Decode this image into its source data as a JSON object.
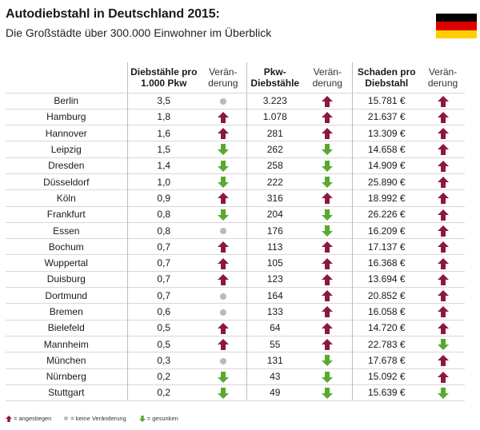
{
  "header": {
    "title": "Autodiebstahl in Deutschland 2015:",
    "subtitle": "Die Großstädte über 300.000 Einwohner im Überblick"
  },
  "flag_colors": [
    "#000000",
    "#dd0000",
    "#ffce00"
  ],
  "colors": {
    "up": "#8b1a3a",
    "down": "#5aa832",
    "none": "#b9b9b9"
  },
  "columns": {
    "thefts_per_1000": [
      "Diebstähle pro",
      "1.000 Pkw"
    ],
    "change": [
      "Verän-",
      "derung"
    ],
    "car_thefts": [
      "Pkw-",
      "Diebstähle"
    ],
    "damage_per_theft": [
      "Schaden pro",
      "Diebstahl"
    ]
  },
  "rows": [
    {
      "city": "Berlin",
      "rate": "3,5",
      "rate_trend": "none",
      "thefts": "3.223",
      "thefts_trend": "up",
      "damage": "15.781 €",
      "damage_trend": "up"
    },
    {
      "city": "Hamburg",
      "rate": "1,8",
      "rate_trend": "up",
      "thefts": "1.078",
      "thefts_trend": "up",
      "damage": "21.637 €",
      "damage_trend": "up"
    },
    {
      "city": "Hannover",
      "rate": "1,6",
      "rate_trend": "up",
      "thefts": "281",
      "thefts_trend": "up",
      "damage": "13.309 €",
      "damage_trend": "up"
    },
    {
      "city": "Leipzig",
      "rate": "1,5",
      "rate_trend": "down",
      "thefts": "262",
      "thefts_trend": "down",
      "damage": "14.658 €",
      "damage_trend": "up"
    },
    {
      "city": "Dresden",
      "rate": "1,4",
      "rate_trend": "down",
      "thefts": "258",
      "thefts_trend": "down",
      "damage": "14.909 €",
      "damage_trend": "up"
    },
    {
      "city": "Düsseldorf",
      "rate": "1,0",
      "rate_trend": "down",
      "thefts": "222",
      "thefts_trend": "down",
      "damage": "25.890 €",
      "damage_trend": "up"
    },
    {
      "city": "Köln",
      "rate": "0,9",
      "rate_trend": "up",
      "thefts": "316",
      "thefts_trend": "up",
      "damage": "18.992 €",
      "damage_trend": "up"
    },
    {
      "city": "Frankfurt",
      "rate": "0,8",
      "rate_trend": "down",
      "thefts": "204",
      "thefts_trend": "down",
      "damage": "26.226 €",
      "damage_trend": "up"
    },
    {
      "city": "Essen",
      "rate": "0,8",
      "rate_trend": "none",
      "thefts": "176",
      "thefts_trend": "down",
      "damage": "16.209 €",
      "damage_trend": "up"
    },
    {
      "city": "Bochum",
      "rate": "0,7",
      "rate_trend": "up",
      "thefts": "113",
      "thefts_trend": "up",
      "damage": "17.137 €",
      "damage_trend": "up"
    },
    {
      "city": "Wuppertal",
      "rate": "0,7",
      "rate_trend": "up",
      "thefts": "105",
      "thefts_trend": "up",
      "damage": "16.368 €",
      "damage_trend": "up"
    },
    {
      "city": "Duisburg",
      "rate": "0,7",
      "rate_trend": "up",
      "thefts": "123",
      "thefts_trend": "up",
      "damage": "13.694 €",
      "damage_trend": "up"
    },
    {
      "city": "Dortmund",
      "rate": "0,7",
      "rate_trend": "none",
      "thefts": "164",
      "thefts_trend": "up",
      "damage": "20.852 €",
      "damage_trend": "up"
    },
    {
      "city": "Bremen",
      "rate": "0,6",
      "rate_trend": "none",
      "thefts": "133",
      "thefts_trend": "up",
      "damage": "16.058 €",
      "damage_trend": "up"
    },
    {
      "city": "Bielefeld",
      "rate": "0,5",
      "rate_trend": "up",
      "thefts": "64",
      "thefts_trend": "up",
      "damage": "14.720 €",
      "damage_trend": "up"
    },
    {
      "city": "Mannheim",
      "rate": "0,5",
      "rate_trend": "up",
      "thefts": "55",
      "thefts_trend": "up",
      "damage": "22.783 €",
      "damage_trend": "down"
    },
    {
      "city": "München",
      "rate": "0,3",
      "rate_trend": "none",
      "thefts": "131",
      "thefts_trend": "down",
      "damage": "17.678 €",
      "damage_trend": "up"
    },
    {
      "city": "Nürnberg",
      "rate": "0,2",
      "rate_trend": "down",
      "thefts": "43",
      "thefts_trend": "down",
      "damage": "15.092 €",
      "damage_trend": "up"
    },
    {
      "city": "Stuttgart",
      "rate": "0,2",
      "rate_trend": "down",
      "thefts": "49",
      "thefts_trend": "down",
      "damage": "15.639 €",
      "damage_trend": "down"
    }
  ],
  "legend": {
    "up": "= angestiegen",
    "none": "= keine Veränderung",
    "down": "= gesunken"
  }
}
